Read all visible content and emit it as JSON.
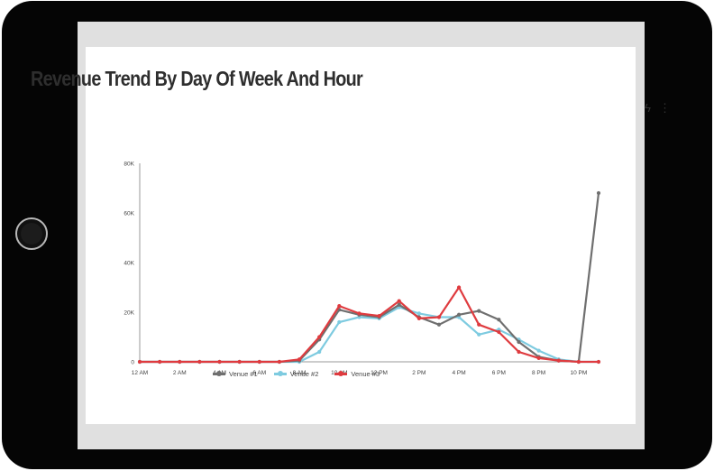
{
  "card": {
    "title": "Revenue Trend By Day Of Week And Hour",
    "actions": [
      {
        "icon": "lightning-icon",
        "glyph": "ϟ"
      },
      {
        "icon": "more-vertical-icon",
        "glyph": "⋮"
      }
    ]
  },
  "colors": {
    "venue1": "#6f6f6f",
    "venue2": "#7ecbe0",
    "venue3": "#df3b3f",
    "axis": "#9a9a9a"
  },
  "chart_data": {
    "type": "line",
    "title": "Revenue Trend By Day Of Week And Hour",
    "xlabel": "",
    "ylabel": "",
    "x": [
      "12 AM",
      "1 AM",
      "2 AM",
      "3 AM",
      "4 AM",
      "5 AM",
      "6 AM",
      "7 AM",
      "8 AM",
      "9 AM",
      "10 AM",
      "11 AM",
      "12 PM",
      "1 PM",
      "2 PM",
      "3 PM",
      "4 PM",
      "5 PM",
      "6 PM",
      "7 PM",
      "8 PM",
      "9 PM",
      "10 PM",
      "11 PM"
    ],
    "x_tick_labels": [
      "12 AM",
      "2 AM",
      "4 AM",
      "6 AM",
      "8 AM",
      "10 AM",
      "12 PM",
      "2 PM",
      "4 PM",
      "6 PM",
      "8 PM",
      "10 PM"
    ],
    "y_tick_labels": [
      "0",
      "20K",
      "40K",
      "60K",
      "80K"
    ],
    "ylim": [
      0,
      80000
    ],
    "grid": false,
    "legend_position": "bottom",
    "series": [
      {
        "name": "Venue #1",
        "color_key": "venue1",
        "values": [
          0,
          0,
          0,
          0,
          0,
          0,
          0,
          0,
          500,
          9000,
          21000,
          19000,
          18000,
          23000,
          18000,
          15000,
          19000,
          20500,
          17000,
          8000,
          2000,
          500,
          0,
          68000
        ]
      },
      {
        "name": "Venue #2",
        "color_key": "venue2",
        "values": [
          0,
          0,
          0,
          0,
          0,
          0,
          0,
          0,
          0,
          4000,
          16000,
          18000,
          17500,
          22000,
          19500,
          18000,
          18000,
          11000,
          13000,
          9000,
          4500,
          1000,
          0,
          0
        ]
      },
      {
        "name": "Venue #3",
        "color_key": "venue3",
        "values": [
          0,
          0,
          0,
          0,
          0,
          0,
          0,
          0,
          1000,
          10000,
          22500,
          19500,
          18500,
          24500,
          17500,
          18000,
          30000,
          15000,
          12000,
          4000,
          1500,
          500,
          0,
          0
        ]
      }
    ]
  }
}
